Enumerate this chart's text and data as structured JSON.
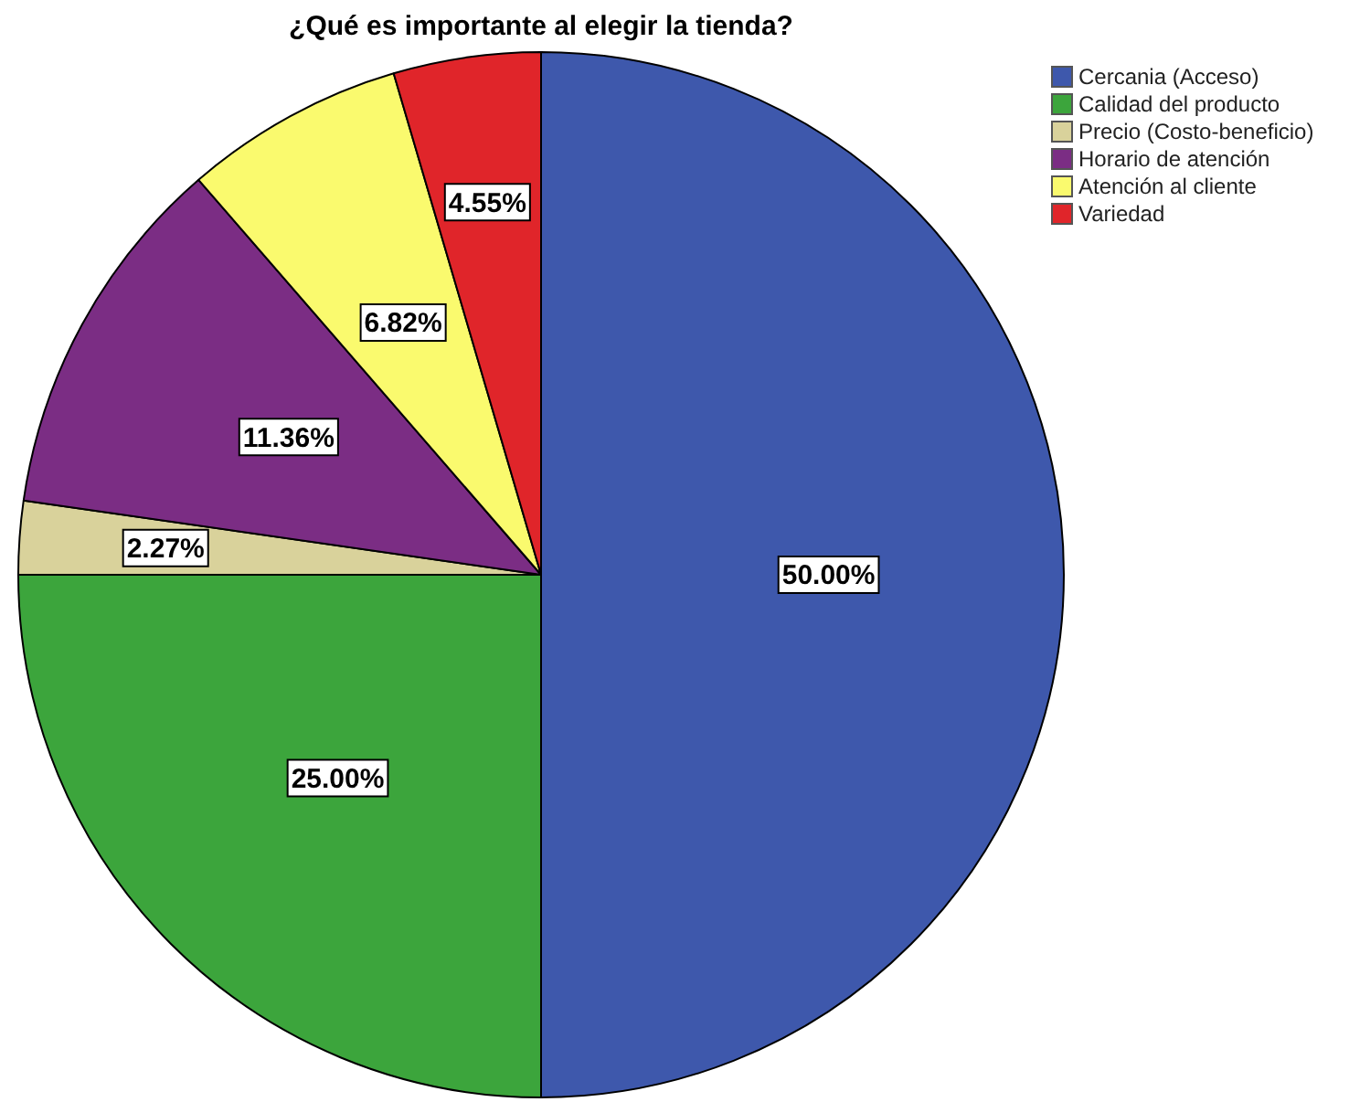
{
  "chart_data": {
    "type": "pie",
    "title": "¿Qué es importante al elegir la tienda?",
    "categories": [
      "Cercania (Acceso)",
      "Calidad del producto",
      "Precio (Costo-beneficio)",
      "Horario de atención",
      "Atención al cliente",
      "Variedad"
    ],
    "values": [
      50.0,
      25.0,
      2.27,
      11.36,
      6.82,
      4.55
    ],
    "colors": [
      "#3e58ac",
      "#3ca53c",
      "#d9d29b",
      "#7b2d84",
      "#fafa6e",
      "#e0252a"
    ],
    "value_labels": [
      "50.00%",
      "25.00%",
      "2.27%",
      "11.36%",
      "6.82%",
      "4.55%"
    ],
    "legend": "top right"
  }
}
